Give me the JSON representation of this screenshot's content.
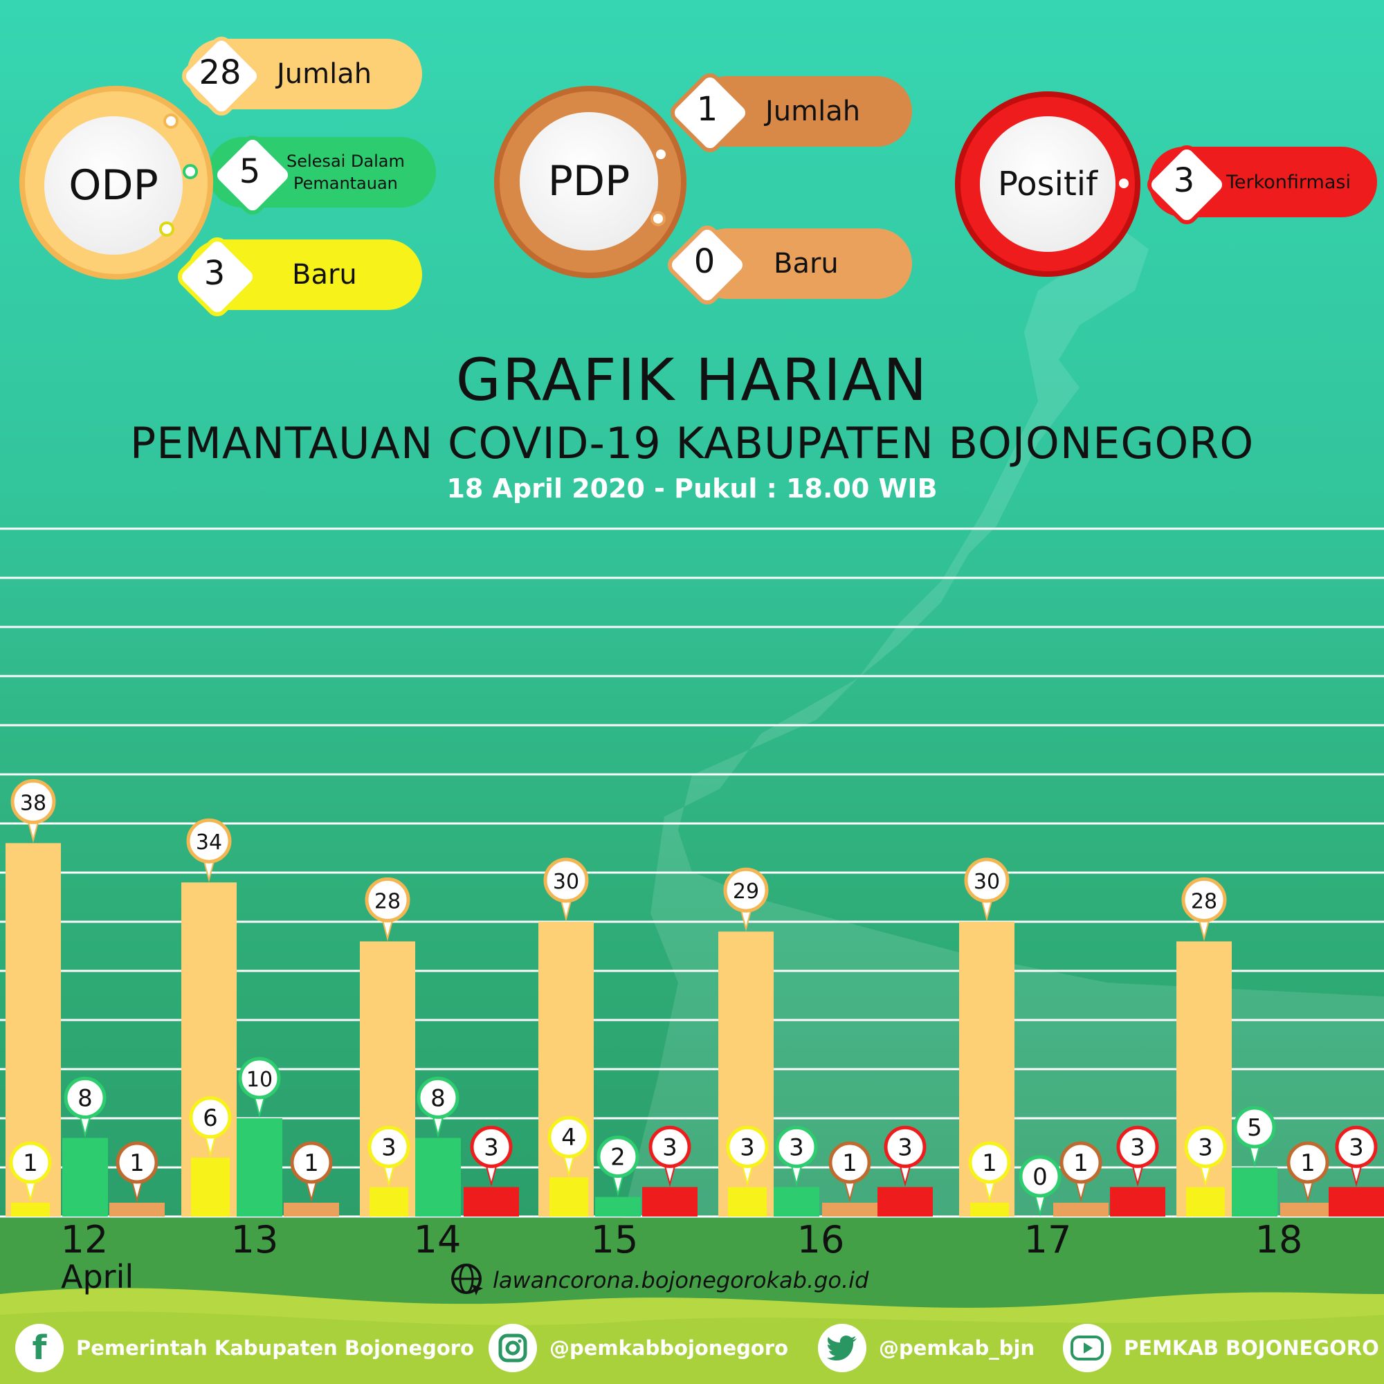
{
  "colors": {
    "odp": "#fdd075",
    "odp_ring": "#f3b653",
    "selesai": "#2dcc6e",
    "odp_baru": "#f6f21a",
    "pdp": "#d98947",
    "pdp_ring": "#c06a2f",
    "pdp_baru": "#e9a15b",
    "positif": "#ee1c1c",
    "positif_ring": "#c00d0d",
    "gridline": "#ffffff"
  },
  "summary": {
    "odp": {
      "label": "ODP",
      "jumlah_value": "28",
      "jumlah_label": "Jumlah",
      "selesai_value": "5",
      "selesai_label_1": "Selesai Dalam",
      "selesai_label_2": "Pemantauan",
      "baru_value": "3",
      "baru_label": "Baru"
    },
    "pdp": {
      "label": "PDP",
      "jumlah_value": "1",
      "jumlah_label": "Jumlah",
      "baru_value": "0",
      "baru_label": "Baru"
    },
    "positif": {
      "label": "Positif",
      "value": "3",
      "value_label": "Terkonfirmasi"
    }
  },
  "header": {
    "title": "GRAFIK HARIAN",
    "subtitle": "PEMANTAUAN COVID-19 KABUPATEN BOJONEGORO",
    "date": "18 April 2020 - Pukul : 18.00 WIB"
  },
  "chart_data": {
    "type": "bar",
    "categories": [
      "12",
      "13",
      "14",
      "15",
      "16",
      "17",
      "18"
    ],
    "category_note": "April",
    "ylim": [
      0,
      50
    ],
    "grid": true,
    "groups": [
      {
        "day": "12",
        "bars": [
          {
            "series": "odp",
            "value": 38
          },
          {
            "series": "odp_baru",
            "value": 1
          },
          {
            "series": "selesai",
            "value": 8
          },
          {
            "series": "pdp",
            "value": 1
          }
        ]
      },
      {
        "day": "13",
        "bars": [
          {
            "series": "odp",
            "value": 34
          },
          {
            "series": "odp_baru",
            "value": 6
          },
          {
            "series": "selesai",
            "value": 10
          },
          {
            "series": "pdp",
            "value": 1
          }
        ]
      },
      {
        "day": "14",
        "bars": [
          {
            "series": "odp",
            "value": 28
          },
          {
            "series": "odp_baru",
            "value": 3
          },
          {
            "series": "selesai",
            "value": 8
          },
          {
            "series": "positif",
            "value": 3
          }
        ]
      },
      {
        "day": "15",
        "bars": [
          {
            "series": "odp",
            "value": 30
          },
          {
            "series": "odp_baru",
            "value": 4
          },
          {
            "series": "selesai",
            "value": 2
          },
          {
            "series": "positif",
            "value": 3
          }
        ]
      },
      {
        "day": "16",
        "bars": [
          {
            "series": "odp",
            "value": 29
          },
          {
            "series": "odp_baru",
            "value": 3
          },
          {
            "series": "selesai",
            "value": 3
          },
          {
            "series": "pdp",
            "value": 1
          },
          {
            "series": "positif",
            "value": 3
          }
        ]
      },
      {
        "day": "17",
        "bars": [
          {
            "series": "odp",
            "value": 30
          },
          {
            "series": "odp_baru",
            "value": 1
          },
          {
            "series": "selesai",
            "value": 0
          },
          {
            "series": "pdp",
            "value": 1
          },
          {
            "series": "positif",
            "value": 3
          }
        ]
      },
      {
        "day": "18",
        "bars": [
          {
            "series": "odp",
            "value": 28
          },
          {
            "series": "odp_baru",
            "value": 3
          },
          {
            "series": "selesai",
            "value": 5
          },
          {
            "series": "pdp",
            "value": 1
          },
          {
            "series": "positif",
            "value": 3
          }
        ]
      }
    ]
  },
  "website": "lawancorona.bojonegorokab.go.id",
  "social": {
    "facebook": "Pemerintah Kabupaten Bojonegoro",
    "instagram": "@pemkabbojonegoro",
    "twitter": "@pemkab_bjn",
    "youtube": "PEMKAB BOJONEGORO"
  }
}
